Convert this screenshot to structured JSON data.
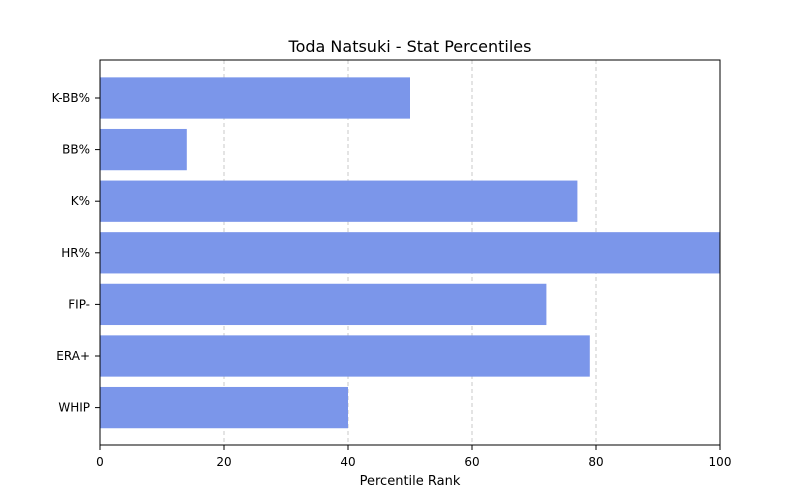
{
  "chart_data": {
    "type": "bar",
    "orientation": "horizontal",
    "title": "Toda Natsuki - Stat Percentiles",
    "xlabel": "Percentile Rank",
    "ylabel": "",
    "categories": [
      "K-BB%",
      "BB%",
      "K%",
      "HR%",
      "FIP-",
      "ERA+",
      "WHIP"
    ],
    "values": [
      50,
      14,
      77,
      100,
      72,
      79,
      40
    ],
    "xlim": [
      0,
      100
    ],
    "xticks": [
      0,
      20,
      40,
      60,
      80,
      100
    ],
    "grid": "vertical-dashed",
    "legend": "none",
    "colors": {
      "bar": "#7b96ea",
      "grid": "#c8c8c8",
      "axis": "#000000"
    }
  }
}
